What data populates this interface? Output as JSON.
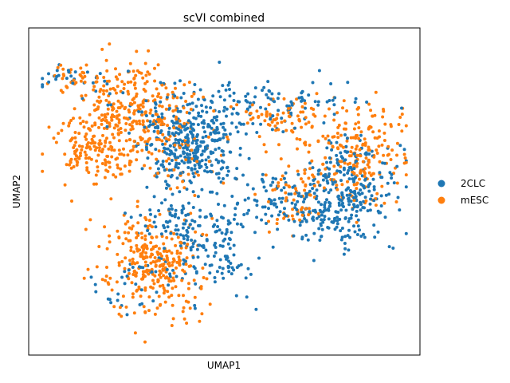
{
  "chart_data": {
    "type": "scatter",
    "title": "scVI combined",
    "xlabel": "UMAP1",
    "ylabel": "UMAP2",
    "xticks": [],
    "yticks": [],
    "grid": false,
    "legend_position": "right",
    "series": [
      {
        "name": "2CLC",
        "color": "#1f77b4",
        "clusters": [
          {
            "center": [
              4.2,
              6.1
            ],
            "spread": [
              0.55,
              0.6
            ],
            "n": 260
          },
          {
            "center": [
              3.6,
              7.2
            ],
            "spread": [
              0.7,
              0.55
            ],
            "n": 90
          },
          {
            "center": [
              5.2,
              7.3
            ],
            "spread": [
              0.9,
              0.5
            ],
            "n": 90
          },
          {
            "center": [
              8.2,
              5.2
            ],
            "spread": [
              0.6,
              0.8
            ],
            "n": 230
          },
          {
            "center": [
              7.4,
              4.2
            ],
            "spread": [
              0.5,
              0.45
            ],
            "n": 110
          },
          {
            "center": [
              6.2,
              4.9
            ],
            "spread": [
              0.35,
              0.45
            ],
            "n": 60
          },
          {
            "center": [
              4.8,
              3.4
            ],
            "spread": [
              0.5,
              0.7
            ],
            "n": 130
          },
          {
            "center": [
              3.8,
              4.2
            ],
            "spread": [
              0.55,
              0.4
            ],
            "n": 60
          },
          {
            "center": [
              1.0,
              8.5
            ],
            "spread": [
              0.5,
              0.2
            ],
            "n": 30
          },
          {
            "center": [
              2.8,
              2.2
            ],
            "spread": [
              0.6,
              0.6
            ],
            "n": 40
          },
          {
            "center": [
              6.8,
              7.8
            ],
            "spread": [
              0.9,
              0.25
            ],
            "n": 50
          }
        ]
      },
      {
        "name": "mESC",
        "color": "#ff7f0e",
        "clusters": [
          {
            "center": [
              2.6,
              7.4
            ],
            "spread": [
              0.75,
              0.9
            ],
            "n": 330
          },
          {
            "center": [
              1.6,
              6.3
            ],
            "spread": [
              0.5,
              0.6
            ],
            "n": 120
          },
          {
            "center": [
              3.2,
              2.8
            ],
            "spread": [
              0.6,
              0.75
            ],
            "n": 300
          },
          {
            "center": [
              8.4,
              6.2
            ],
            "spread": [
              0.6,
              0.8
            ],
            "n": 220
          },
          {
            "center": [
              6.5,
              7.2
            ],
            "spread": [
              0.6,
              0.3
            ],
            "n": 70
          },
          {
            "center": [
              6.8,
              4.8
            ],
            "spread": [
              0.4,
              0.6
            ],
            "n": 60
          },
          {
            "center": [
              1.2,
              8.5
            ],
            "spread": [
              0.45,
              0.2
            ],
            "n": 25
          },
          {
            "center": [
              4.0,
              6.0
            ],
            "spread": [
              0.6,
              0.6
            ],
            "n": 40
          }
        ]
      }
    ],
    "xlim": [
      0,
      10
    ],
    "ylim": [
      0,
      10
    ]
  }
}
